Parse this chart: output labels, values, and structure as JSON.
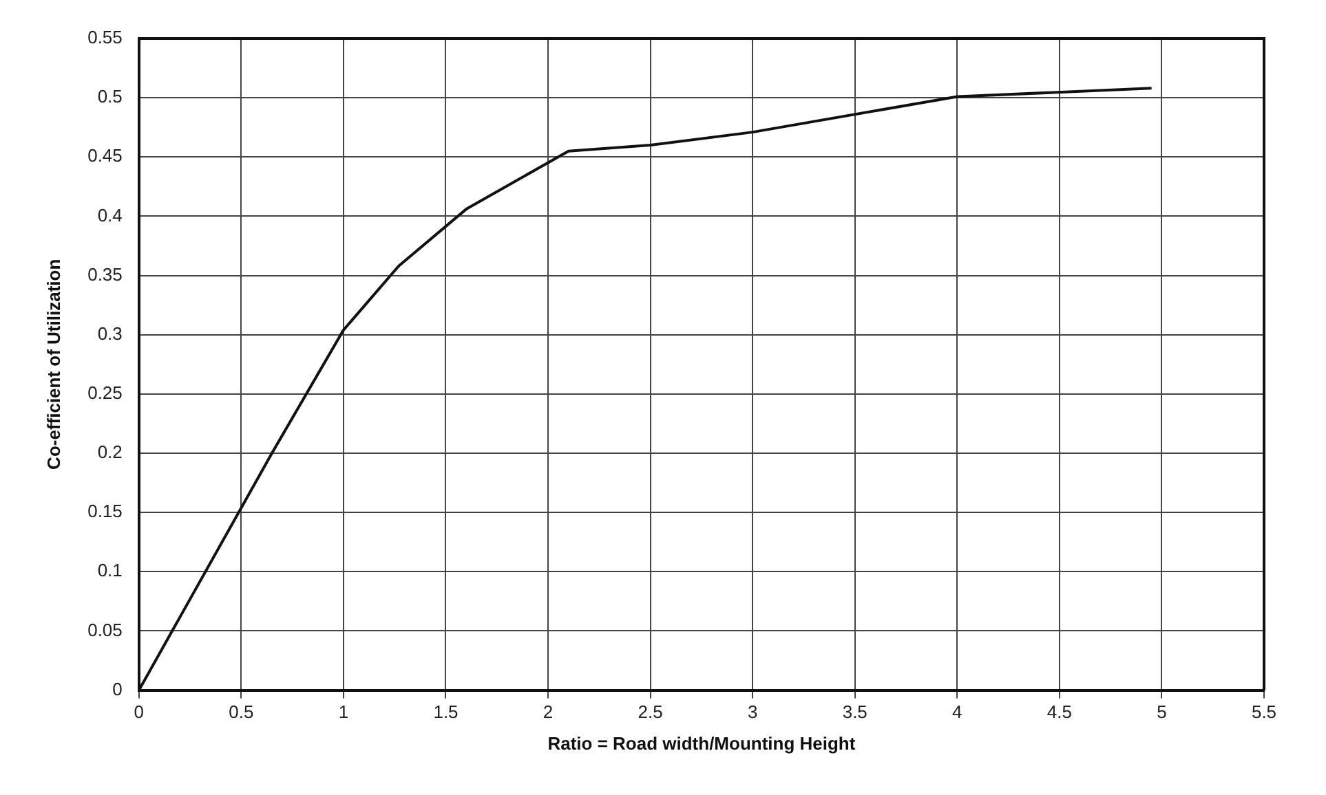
{
  "chart_data": {
    "type": "line",
    "xlabel": "Ratio = Road width/Mounting Height",
    "ylabel": "Co-efficient of Utilization",
    "x": [
      0,
      0.65,
      1,
      1.27,
      1.6,
      2.1,
      2.5,
      3,
      4,
      4.95
    ],
    "series": [
      {
        "color": "#111111",
        "values": [
          0,
          0.2,
          0.304,
          0.358,
          0.406,
          0.455,
          0.46,
          0.471,
          0.501,
          0.508
        ]
      }
    ],
    "xlim": [
      0,
      5.5
    ],
    "xticks": [
      0,
      0.5,
      1,
      1.5,
      2,
      2.5,
      3,
      3.5,
      4,
      4.5,
      5,
      5.5
    ],
    "ylim": [
      0,
      0.55
    ],
    "yticks": [
      0,
      0.05,
      0.1,
      0.15,
      0.2,
      0.25,
      0.3,
      0.35,
      0.4,
      0.45,
      0.5,
      0.55
    ],
    "grid": true,
    "marker": "none",
    "line_style": "solid"
  }
}
